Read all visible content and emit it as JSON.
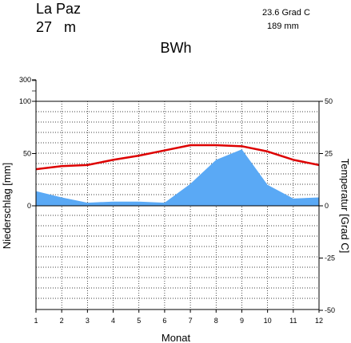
{
  "header": {
    "station": "La Paz",
    "elevation": "27",
    "elevation_unit": "m",
    "mean_temperature": "23.6 Grad C",
    "annual_precipitation": "189 mm",
    "climate_class": "BWh"
  },
  "chart_data": {
    "type": "area",
    "title": "BWh",
    "xlabel": "Monat",
    "ylabel_left": "Niederschlag [mm]",
    "ylabel_right": "Temperatur [Grad C]",
    "x": [
      1,
      2,
      3,
      4,
      5,
      6,
      7,
      8,
      9,
      10,
      11,
      12
    ],
    "x_tick_labels": [
      "1",
      "2",
      "3",
      "4",
      "5",
      "6",
      "7",
      "8",
      "9",
      "10",
      "11",
      "12"
    ],
    "xlim": [
      1,
      12
    ],
    "left_axis": {
      "tick_labels": [
        "300",
        "100",
        "50",
        "0"
      ],
      "ylim": [
        -100,
        300
      ],
      "note": "scale compressed above 100 mm"
    },
    "right_axis": {
      "tick_labels": [
        "50",
        "25",
        "0",
        "-25",
        "-50"
      ],
      "ylim": [
        -50,
        50
      ]
    },
    "series": [
      {
        "name": "Niederschlag",
        "kind": "area",
        "unit": "mm",
        "color": "#5aa9f5",
        "values": [
          14,
          8,
          3,
          4,
          4,
          3,
          21,
          44,
          54,
          20,
          7,
          8
        ]
      },
      {
        "name": "Temperatur",
        "kind": "line",
        "unit": "Grad C",
        "color": "#dd0000",
        "values": [
          17.5,
          19,
          19.5,
          22,
          24,
          26.5,
          29,
          29,
          28.5,
          26,
          22,
          19.5
        ]
      }
    ],
    "grid": true
  }
}
